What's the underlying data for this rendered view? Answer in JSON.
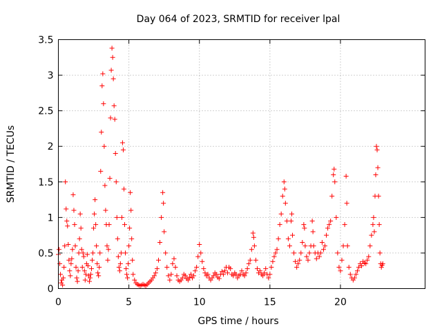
{
  "chart_data": {
    "type": "scatter",
    "title": "Day 064 of 2023, SRMTID for receiver lpal",
    "xlabel": "GPS time / hours",
    "ylabel": "SRMTID / TECUs",
    "xlim": [
      0,
      26
    ],
    "ylim": [
      0,
      3.5
    ],
    "grid": true,
    "marker": "+",
    "color": "#ff0000",
    "x_ticks": [
      {
        "value": 0,
        "label": "0"
      },
      {
        "value": 5,
        "label": "5"
      },
      {
        "value": 10,
        "label": "10"
      },
      {
        "value": 15,
        "label": "15"
      },
      {
        "value": 20,
        "label": "20"
      }
    ],
    "y_ticks": [
      {
        "value": 0,
        "label": "0"
      },
      {
        "value": 0.5,
        "label": "0.5"
      },
      {
        "value": 1,
        "label": "1"
      },
      {
        "value": 1.5,
        "label": "1.5"
      },
      {
        "value": 2,
        "label": "2"
      },
      {
        "value": 2.5,
        "label": "2.5"
      },
      {
        "value": 3,
        "label": "3"
      },
      {
        "value": 3.5,
        "label": "3.5"
      }
    ],
    "series": [
      {
        "name": "SRMTID",
        "points": [
          [
            0.0,
            0.48
          ],
          [
            0.05,
            0.55
          ],
          [
            0.1,
            0.35
          ],
          [
            0.15,
            0.2
          ],
          [
            0.2,
            0.08
          ],
          [
            0.25,
            0.12
          ],
          [
            0.3,
            0.05
          ],
          [
            0.35,
            0.15
          ],
          [
            0.4,
            0.3
          ],
          [
            0.45,
            0.6
          ],
          [
            0.5,
            1.5
          ],
          [
            0.55,
            1.12
          ],
          [
            0.6,
            0.95
          ],
          [
            0.65,
            0.88
          ],
          [
            0.7,
            0.62
          ],
          [
            0.75,
            0.4
          ],
          [
            0.8,
            0.25
          ],
          [
            0.85,
            0.18
          ],
          [
            0.9,
            0.35
          ],
          [
            0.95,
            0.42
          ],
          [
            1.0,
            0.55
          ],
          [
            1.05,
            1.32
          ],
          [
            1.1,
            1.1
          ],
          [
            1.15,
            0.9
          ],
          [
            1.2,
            0.6
          ],
          [
            1.25,
            0.3
          ],
          [
            1.3,
            0.15
          ],
          [
            1.35,
            0.1
          ],
          [
            1.4,
            0.25
          ],
          [
            1.45,
            0.5
          ],
          [
            1.5,
            0.7
          ],
          [
            1.55,
            1.05
          ],
          [
            1.6,
            0.85
          ],
          [
            1.65,
            0.55
          ],
          [
            1.7,
            0.3
          ],
          [
            1.75,
            0.5
          ],
          [
            1.8,
            0.45
          ],
          [
            1.85,
            0.25
          ],
          [
            1.9,
            0.12
          ],
          [
            1.95,
            0.2
          ],
          [
            2.0,
            0.35
          ],
          [
            2.05,
            0.48
          ],
          [
            2.1,
            0.32
          ],
          [
            2.15,
            0.18
          ],
          [
            2.2,
            0.1
          ],
          [
            2.25,
            0.15
          ],
          [
            2.3,
            0.2
          ],
          [
            2.35,
            0.28
          ],
          [
            2.4,
            0.4
          ],
          [
            2.45,
            0.5
          ],
          [
            2.5,
            0.85
          ],
          [
            2.55,
            1.05
          ],
          [
            2.6,
            1.25
          ],
          [
            2.65,
            0.9
          ],
          [
            2.7,
            0.6
          ],
          [
            2.75,
            0.35
          ],
          [
            2.8,
            0.22
          ],
          [
            2.85,
            0.18
          ],
          [
            2.9,
            0.3
          ],
          [
            2.95,
            0.5
          ],
          [
            3.0,
            1.65
          ],
          [
            3.05,
            2.2
          ],
          [
            3.1,
            2.85
          ],
          [
            3.15,
            3.02
          ],
          [
            3.2,
            2.6
          ],
          [
            3.25,
            2.0
          ],
          [
            3.3,
            1.45
          ],
          [
            3.35,
            1.1
          ],
          [
            3.4,
            0.9
          ],
          [
            3.45,
            0.6
          ],
          [
            3.5,
            0.4
          ],
          [
            3.55,
            0.55
          ],
          [
            3.6,
            0.9
          ],
          [
            3.65,
            1.55
          ],
          [
            3.7,
            2.4
          ],
          [
            3.75,
            3.07
          ],
          [
            3.8,
            3.38
          ],
          [
            3.85,
            3.25
          ],
          [
            3.9,
            2.95
          ],
          [
            3.95,
            2.57
          ],
          [
            4.0,
            2.38
          ],
          [
            4.05,
            1.9
          ],
          [
            4.1,
            1.5
          ],
          [
            4.15,
            1.0
          ],
          [
            4.2,
            0.7
          ],
          [
            4.25,
            0.45
          ],
          [
            4.3,
            0.3
          ],
          [
            4.35,
            0.25
          ],
          [
            4.4,
            0.35
          ],
          [
            4.45,
            0.5
          ],
          [
            4.5,
            1.0
          ],
          [
            4.55,
            2.05
          ],
          [
            4.6,
            1.95
          ],
          [
            4.65,
            1.4
          ],
          [
            4.7,
            0.9
          ],
          [
            4.75,
            0.5
          ],
          [
            4.8,
            0.28
          ],
          [
            4.85,
            0.2
          ],
          [
            4.9,
            0.15
          ],
          [
            4.95,
            0.35
          ],
          [
            5.0,
            0.6
          ],
          [
            5.05,
            0.85
          ],
          [
            5.1,
            1.35
          ],
          [
            5.15,
            1.1
          ],
          [
            5.2,
            0.7
          ],
          [
            5.25,
            0.4
          ],
          [
            5.3,
            0.2
          ],
          [
            5.4,
            0.12
          ],
          [
            5.5,
            0.08
          ],
          [
            5.6,
            0.06
          ],
          [
            5.7,
            0.05
          ],
          [
            5.8,
            0.04
          ],
          [
            5.9,
            0.05
          ],
          [
            6.0,
            0.06
          ],
          [
            6.1,
            0.05
          ],
          [
            6.2,
            0.04
          ],
          [
            6.3,
            0.06
          ],
          [
            6.4,
            0.08
          ],
          [
            6.5,
            0.1
          ],
          [
            6.6,
            0.12
          ],
          [
            6.7,
            0.15
          ],
          [
            6.8,
            0.18
          ],
          [
            6.9,
            0.22
          ],
          [
            7.0,
            0.28
          ],
          [
            7.1,
            0.4
          ],
          [
            7.2,
            0.65
          ],
          [
            7.3,
            1.0
          ],
          [
            7.4,
            1.35
          ],
          [
            7.45,
            1.2
          ],
          [
            7.5,
            0.8
          ],
          [
            7.6,
            0.5
          ],
          [
            7.7,
            0.3
          ],
          [
            7.8,
            0.18
          ],
          [
            7.9,
            0.12
          ],
          [
            8.0,
            0.2
          ],
          [
            8.1,
            0.35
          ],
          [
            8.2,
            0.42
          ],
          [
            8.3,
            0.3
          ],
          [
            8.4,
            0.18
          ],
          [
            8.5,
            0.12
          ],
          [
            8.6,
            0.1
          ],
          [
            8.7,
            0.12
          ],
          [
            8.8,
            0.15
          ],
          [
            8.9,
            0.2
          ],
          [
            9.0,
            0.18
          ],
          [
            9.1,
            0.14
          ],
          [
            9.2,
            0.12
          ],
          [
            9.3,
            0.16
          ],
          [
            9.4,
            0.2
          ],
          [
            9.5,
            0.15
          ],
          [
            9.6,
            0.18
          ],
          [
            9.7,
            0.25
          ],
          [
            9.8,
            0.3
          ],
          [
            9.9,
            0.45
          ],
          [
            10.0,
            0.62
          ],
          [
            10.1,
            0.5
          ],
          [
            10.2,
            0.38
          ],
          [
            10.3,
            0.28
          ],
          [
            10.4,
            0.22
          ],
          [
            10.5,
            0.18
          ],
          [
            10.6,
            0.2
          ],
          [
            10.7,
            0.15
          ],
          [
            10.8,
            0.12
          ],
          [
            10.9,
            0.15
          ],
          [
            11.0,
            0.18
          ],
          [
            11.1,
            0.22
          ],
          [
            11.2,
            0.2
          ],
          [
            11.3,
            0.16
          ],
          [
            11.4,
            0.14
          ],
          [
            11.5,
            0.2
          ],
          [
            11.6,
            0.24
          ],
          [
            11.7,
            0.2
          ],
          [
            11.8,
            0.25
          ],
          [
            11.9,
            0.3
          ],
          [
            12.0,
            0.22
          ],
          [
            12.1,
            0.3
          ],
          [
            12.2,
            0.28
          ],
          [
            12.3,
            0.2
          ],
          [
            12.4,
            0.18
          ],
          [
            12.5,
            0.22
          ],
          [
            12.6,
            0.2
          ],
          [
            12.7,
            0.15
          ],
          [
            12.8,
            0.18
          ],
          [
            12.9,
            0.2
          ],
          [
            13.0,
            0.25
          ],
          [
            13.1,
            0.2
          ],
          [
            13.2,
            0.18
          ],
          [
            13.3,
            0.22
          ],
          [
            13.4,
            0.28
          ],
          [
            13.5,
            0.35
          ],
          [
            13.6,
            0.4
          ],
          [
            13.7,
            0.55
          ],
          [
            13.8,
            0.78
          ],
          [
            13.85,
            0.72
          ],
          [
            13.9,
            0.6
          ],
          [
            14.0,
            0.4
          ],
          [
            14.1,
            0.28
          ],
          [
            14.2,
            0.22
          ],
          [
            14.3,
            0.25
          ],
          [
            14.4,
            0.2
          ],
          [
            14.5,
            0.18
          ],
          [
            14.6,
            0.22
          ],
          [
            14.7,
            0.28
          ],
          [
            14.8,
            0.2
          ],
          [
            14.9,
            0.15
          ],
          [
            15.0,
            0.2
          ],
          [
            15.1,
            0.3
          ],
          [
            15.2,
            0.38
          ],
          [
            15.3,
            0.45
          ],
          [
            15.4,
            0.5
          ],
          [
            15.5,
            0.55
          ],
          [
            15.6,
            0.7
          ],
          [
            15.7,
            0.9
          ],
          [
            15.8,
            1.05
          ],
          [
            15.9,
            1.3
          ],
          [
            16.0,
            1.5
          ],
          [
            16.05,
            1.4
          ],
          [
            16.1,
            1.2
          ],
          [
            16.2,
            0.95
          ],
          [
            16.3,
            0.7
          ],
          [
            16.4,
            0.6
          ],
          [
            16.5,
            0.95
          ],
          [
            16.55,
            1.05
          ],
          [
            16.6,
            0.75
          ],
          [
            16.7,
            0.5
          ],
          [
            16.8,
            0.38
          ],
          [
            16.9,
            0.3
          ],
          [
            17.0,
            0.35
          ],
          [
            17.1,
            0.4
          ],
          [
            17.2,
            0.5
          ],
          [
            17.3,
            0.65
          ],
          [
            17.4,
            0.9
          ],
          [
            17.45,
            0.85
          ],
          [
            17.5,
            0.6
          ],
          [
            17.6,
            0.45
          ],
          [
            17.7,
            0.4
          ],
          [
            17.8,
            0.5
          ],
          [
            17.9,
            0.6
          ],
          [
            18.0,
            0.95
          ],
          [
            18.05,
            0.8
          ],
          [
            18.1,
            0.6
          ],
          [
            18.2,
            0.5
          ],
          [
            18.3,
            0.42
          ],
          [
            18.4,
            0.5
          ],
          [
            18.5,
            0.45
          ],
          [
            18.6,
            0.5
          ],
          [
            18.7,
            0.65
          ],
          [
            18.8,
            0.55
          ],
          [
            18.9,
            0.6
          ],
          [
            19.0,
            0.75
          ],
          [
            19.1,
            0.85
          ],
          [
            19.2,
            0.9
          ],
          [
            19.3,
            0.95
          ],
          [
            19.4,
            1.3
          ],
          [
            19.5,
            1.6
          ],
          [
            19.55,
            1.68
          ],
          [
            19.6,
            1.5
          ],
          [
            19.7,
            1.0
          ],
          [
            19.8,
            0.5
          ],
          [
            19.9,
            0.3
          ],
          [
            20.0,
            0.25
          ],
          [
            20.1,
            0.4
          ],
          [
            20.2,
            0.6
          ],
          [
            20.3,
            0.9
          ],
          [
            20.4,
            1.58
          ],
          [
            20.45,
            1.2
          ],
          [
            20.5,
            0.6
          ],
          [
            20.6,
            0.3
          ],
          [
            20.7,
            0.2
          ],
          [
            20.8,
            0.15
          ],
          [
            20.9,
            0.12
          ],
          [
            21.0,
            0.15
          ],
          [
            21.1,
            0.2
          ],
          [
            21.2,
            0.25
          ],
          [
            21.3,
            0.3
          ],
          [
            21.4,
            0.35
          ],
          [
            21.5,
            0.32
          ],
          [
            21.6,
            0.38
          ],
          [
            21.7,
            0.36
          ],
          [
            21.8,
            0.35
          ],
          [
            21.9,
            0.4
          ],
          [
            22.0,
            0.45
          ],
          [
            22.1,
            0.6
          ],
          [
            22.2,
            0.75
          ],
          [
            22.3,
            0.9
          ],
          [
            22.35,
            1.0
          ],
          [
            22.4,
            0.8
          ],
          [
            22.45,
            1.3
          ],
          [
            22.5,
            1.6
          ],
          [
            22.55,
            2.0
          ],
          [
            22.6,
            1.95
          ],
          [
            22.65,
            1.7
          ],
          [
            22.7,
            1.3
          ],
          [
            22.75,
            0.9
          ],
          [
            22.8,
            0.5
          ],
          [
            22.85,
            0.35
          ],
          [
            22.9,
            0.3
          ],
          [
            22.95,
            0.33
          ],
          [
            23.0,
            0.35
          ]
        ]
      }
    ]
  }
}
